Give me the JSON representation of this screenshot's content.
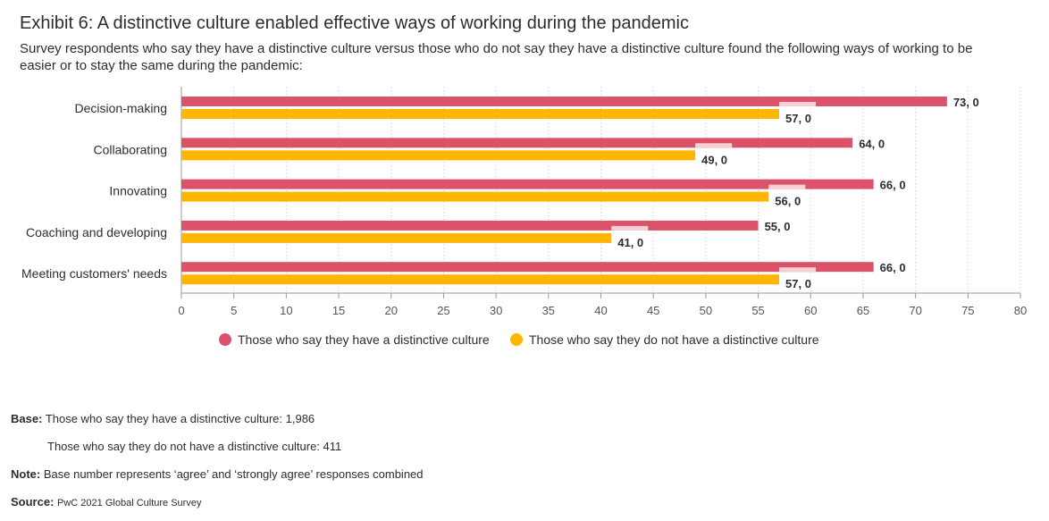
{
  "title": "Exhibit 6: A distinctive culture enabled effective ways of working during the pandemic",
  "subtitle": "Survey respondents who say they have a distinctive culture versus those who do not say they have a distinctive culture found the following ways of working to be easier or to stay the same during the pandemic:",
  "chart_data": {
    "type": "bar",
    "orientation": "horizontal",
    "categories": [
      "Decision-making",
      "Collaborating",
      "Innovating",
      "Coaching and developing",
      "Meeting customers' needs"
    ],
    "series": [
      {
        "name": "Those who say they have a distinctive culture",
        "color": "#dc5369",
        "values": [
          73,
          64,
          66,
          55,
          66
        ],
        "labels": [
          "73, 0",
          "64, 0",
          "66, 0",
          "55, 0",
          "66, 0"
        ]
      },
      {
        "name": "Those who say they do not have a distinctive culture",
        "color": "#ffb600",
        "values": [
          57,
          49,
          56,
          41,
          57
        ],
        "labels": [
          "57, 0",
          "49, 0",
          "56, 0",
          "41, 0",
          "57, 0"
        ]
      }
    ],
    "xlim": [
      0,
      80
    ],
    "xticks": [
      "0",
      "5",
      "10",
      "15",
      "20",
      "25",
      "30",
      "35",
      "40",
      "45",
      "50",
      "55",
      "60",
      "65",
      "70",
      "75",
      "80"
    ],
    "grid": true,
    "legend": "bottom"
  },
  "footer": {
    "base_label": "Base:",
    "base_1": "Those who say they have a distinctive culture: 1,986",
    "base_2": "Those who say they do not have a distinctive culture: 411",
    "note_label": "Note:",
    "note": "Base number represents ‘agree’ and ‘strongly agree’ responses combined",
    "source_label": "Source:",
    "source": "PwC 2021 Global Culture Survey"
  }
}
